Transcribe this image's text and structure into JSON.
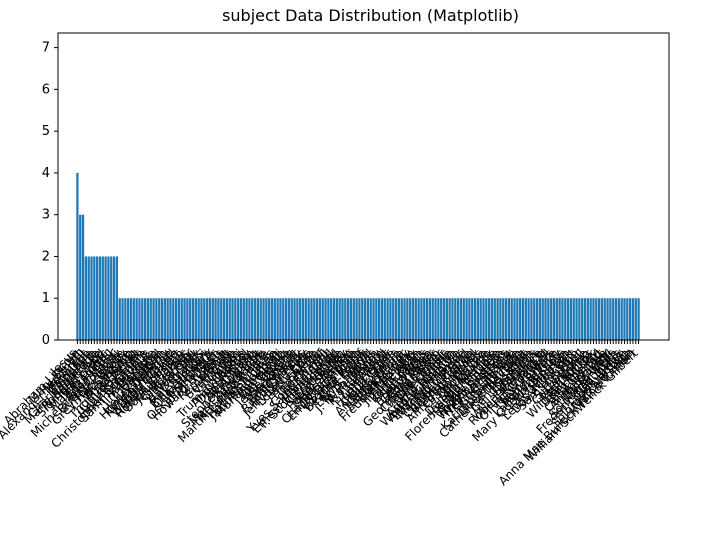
{
  "chart_data": {
    "type": "bar",
    "title": "subject Data Distribution (Matplotlib)",
    "xlabel": "",
    "ylabel": "",
    "ylim": [
      0,
      7.35
    ],
    "yticks": [
      0,
      1,
      2,
      3,
      4,
      5,
      6,
      7
    ],
    "grid": false,
    "bar_color": "#1f77b4",
    "categories": [
      "Jesus",
      "Abraham Lincoln",
      "Mary Stuart",
      "Henry VIII",
      "Alexander the Great",
      "Napoleon",
      "Cleopatra",
      "Charles Darwin",
      "Marie Antoinette",
      "Robert E. Lee",
      "Sigmund Freud",
      "Joan of Arc",
      "Martin Luther",
      "Elizabeth I",
      "Adolf Hitler",
      "Michelangelo Merisi",
      "Butch Cassidy",
      "Joe Pistone",
      "Greyfriars Bobby",
      "Al Capone",
      "Wyatt Earp",
      "Frida Kahlo",
      "Thomas Becket",
      "Claude Monet",
      "Roy Cohn",
      "Henri Charrière",
      "Christopher Columbus",
      "Sammy Davis Jr.",
      "Tamerlane",
      "Jim Morrison",
      "Hannibal",
      "Tecumseh",
      "Henry Hudson",
      "Hunter Doherty",
      "Kimani Maruge",
      "Edith Cavell",
      "Woody Guthrie",
      "Amelia Earhart",
      "Robert Johnson",
      "Bonnie Parker",
      "Jesse James",
      "Grace Kelly",
      "Mata Hari",
      "Ned Kelly",
      "Harvey Milk",
      "Ray Charles",
      "Gandhi",
      "Billie Holiday",
      "Che Guevara",
      "Malcolm X",
      "Oskar Schindler",
      "Johnny Cash",
      "Howard Hughes",
      "Tesla",
      "Rembrandt",
      "Mozart",
      "Beethoven",
      "Van Gogh",
      "Galileo",
      "Houdini",
      "Truman Capote",
      "Andy Warhol",
      "Dian Fossey",
      "John Nash",
      "Alan Turing",
      "Stephen Hawking",
      "Steve Jobs",
      "Mark Zuckerberg",
      "Nelson Mandela",
      "Martin Luther King Jr.",
      "Rosa Parks",
      "Harriet Tubman",
      "Jackie Robinson",
      "Muhammad Ali",
      "Babe Ruth",
      "Lou Gehrig",
      "Jim Thorpe",
      "Jesse Owens",
      "Seabiscuit",
      "Secretariat",
      "Buddy Holly",
      "Ritchie Valens",
      "Elvis Presley",
      "Jerry Lee Lewis",
      "Loretta Lynn",
      "Patsy Cline",
      "Selena",
      "Tina Turner",
      "Edith Piaf",
      "Coco Chanel",
      "Yves Saint Laurent",
      "Julia Child",
      "Ernest Hemingway",
      "F. Scott Fitzgerald",
      "Oscar Wilde",
      "Lord Byron",
      "Percy Shelley",
      "Mary Shelley",
      "Jane Austen",
      "Charlotte Brontë",
      "Emily Dickinson",
      "Sylvia Plath",
      "Virginia Woolf",
      "Beatrix Potter",
      "J. M. Barrie",
      "Lewis Carroll",
      "C. S. Lewis",
      "J. R. R. Tolkien",
      "Walt Disney",
      "P. T. Barnum",
      "Ed Wood",
      "Larry Flynt",
      "Hugh Hefner",
      "Bob Crane",
      "Chuck Barris",
      "Andy Kaufman",
      "Lenny Bruce",
      "Richard Pryor",
      "Bob Marley",
      "Freddie Mercury",
      "Elton John",
      "Jimi Hendrix",
      "Janis Joplin",
      "Kurt Cobain",
      "Ian Curtis",
      "Sid Vicious",
      "Brian Wilson",
      "Glenn Miller",
      "Cole Porter",
      "George Gershwin",
      "Charlie Parker",
      "Chet Baker",
      "Miles Davis",
      "Nina Simone",
      "Aretha Franklin",
      "Whitney Houston",
      "Amy Winehouse",
      "Elizabeth Taylor",
      "Marilyn Monroe",
      "Judy Garland",
      "Charlie Chaplin",
      "Buster Keaton",
      "Stan Laurel",
      "Alfred Hitchcock",
      "Orson Welles",
      "Errol Flynn",
      "Bruce Lee",
      "Dalton Trumbo",
      "Joseph Merrick",
      "Florence Nightingale",
      "Marie Curie",
      "Albert Einstein",
      "Thomas Edison",
      "Wright Brothers",
      "Neil Armstrong",
      "Chuck Yeager",
      "Gus Grissom",
      "Sally Ride",
      "Katherine Johnson",
      "Queen Victoria",
      "Catherine the Great",
      "Rasputin",
      "Genghis Khan",
      "Leonidas",
      "Spartacus",
      "William Wallace",
      "Robert the Bruce",
      "Richard III",
      "Oliver Cromwell",
      "Guy Fawkes",
      "Thomas More",
      "Anne Boleyn",
      "Lady Jane Grey",
      "Mary Queen of Scots",
      "Washington",
      "Jefferson",
      "Lewis and Clark",
      "Davy Crockett",
      "Sam Houston",
      "Custer",
      "Sitting Bull",
      "Crazy Horse",
      "Geronimo",
      "Pocahontas",
      "Wild Bill Hickok",
      "Doc Holliday",
      "Billy the Kid",
      "Pat Garrett",
      "Calamity Jane",
      "Annie Oakley",
      "Buffalo Bill",
      "Ida B. Wells",
      "Sojourner Truth",
      "Frederick Douglass",
      "Nat Turner",
      "John Brown",
      "Solomon Northup",
      "Marcelo Leite",
      "Anna Mae Bullock (Tina Turner)",
      "William Schwenck Gilbert"
    ],
    "values": [
      4,
      3,
      3,
      2,
      2,
      2,
      2,
      2,
      2,
      2,
      2,
      2,
      2,
      2,
      2,
      1,
      1,
      1,
      1,
      1,
      1,
      1,
      1,
      1,
      1,
      1,
      1,
      1,
      1,
      1,
      1,
      1,
      1,
      1,
      1,
      1,
      1,
      1,
      1,
      1,
      1,
      1,
      1,
      1,
      1,
      1,
      1,
      1,
      1,
      1,
      1,
      1,
      1,
      1,
      1,
      1,
      1,
      1,
      1,
      1,
      1,
      1,
      1,
      1,
      1,
      1,
      1,
      1,
      1,
      1,
      1,
      1,
      1,
      1,
      1,
      1,
      1,
      1,
      1,
      1,
      1,
      1,
      1,
      1,
      1,
      1,
      1,
      1,
      1,
      1,
      1,
      1,
      1,
      1,
      1,
      1,
      1,
      1,
      1,
      1,
      1,
      1,
      1,
      1,
      1,
      1,
      1,
      1,
      1,
      1,
      1,
      1,
      1,
      1,
      1,
      1,
      1,
      1,
      1,
      1,
      1,
      1,
      1,
      1,
      1,
      1,
      1,
      1,
      1,
      1,
      1,
      1,
      1,
      1,
      1,
      1,
      1,
      1,
      1,
      1,
      1,
      1,
      1,
      1,
      1,
      1,
      1,
      1,
      1,
      1,
      1,
      1,
      1,
      1,
      1,
      1,
      1,
      1,
      1,
      1,
      1,
      1,
      1,
      1,
      1,
      1,
      1,
      1,
      1,
      1,
      1,
      1,
      1,
      1,
      1,
      1,
      1,
      1,
      1,
      1,
      1,
      1,
      1,
      1,
      1,
      1,
      1,
      1,
      1,
      1,
      1,
      1,
      1,
      1,
      1,
      1,
      1,
      1,
      1,
      1
    ]
  }
}
